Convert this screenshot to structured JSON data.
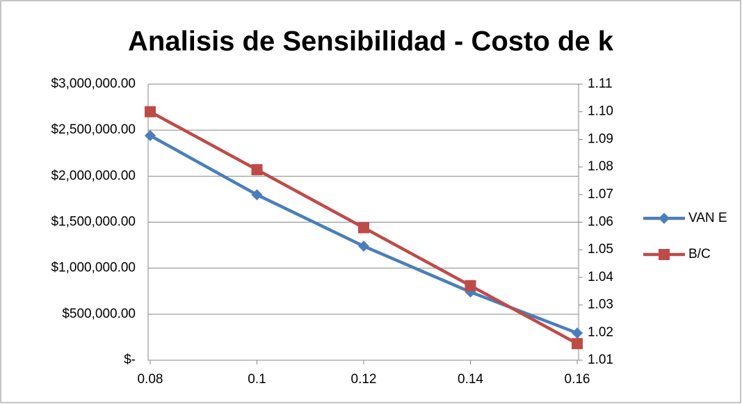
{
  "chart_data": {
    "type": "line",
    "title": "Analisis de Sensibilidad - Costo de k",
    "categories": [
      "0.08",
      "0.1",
      "0.12",
      "0.14",
      "0.16"
    ],
    "series": [
      {
        "name": "VAN E",
        "color": "#4a7ebb",
        "marker": "diamond",
        "values": [
          2441000,
          1798000,
          1239000,
          741000,
          295000
        ]
      },
      {
        "name": "B/C",
        "color": "#be4b48",
        "marker": "square",
        "axis": "y2",
        "values": [
          1.1,
          1.079,
          1.058,
          1.037,
          1.016
        ]
      }
    ],
    "ylim": [
      0,
      3000000
    ],
    "yticks": [
      {
        "value": 0,
        "label": "$-"
      },
      {
        "value": 500000,
        "label": "$500,000.00"
      },
      {
        "value": 1000000,
        "label": "$1,000,000.00"
      },
      {
        "value": 1500000,
        "label": "$1,500,000.00"
      },
      {
        "value": 2000000,
        "label": "$2,000,000.00"
      },
      {
        "value": 2500000,
        "label": "$2,500,000.00"
      },
      {
        "value": 3000000,
        "label": "$3,000,000.00"
      }
    ],
    "y2lim": [
      1.01,
      1.11
    ],
    "y2ticks": [
      1.01,
      1.02,
      1.03,
      1.04,
      1.05,
      1.06,
      1.07,
      1.08,
      1.09,
      {
        "value": 1.1,
        "label": "1.10"
      },
      1.11
    ],
    "grid": true,
    "legend": "right"
  }
}
